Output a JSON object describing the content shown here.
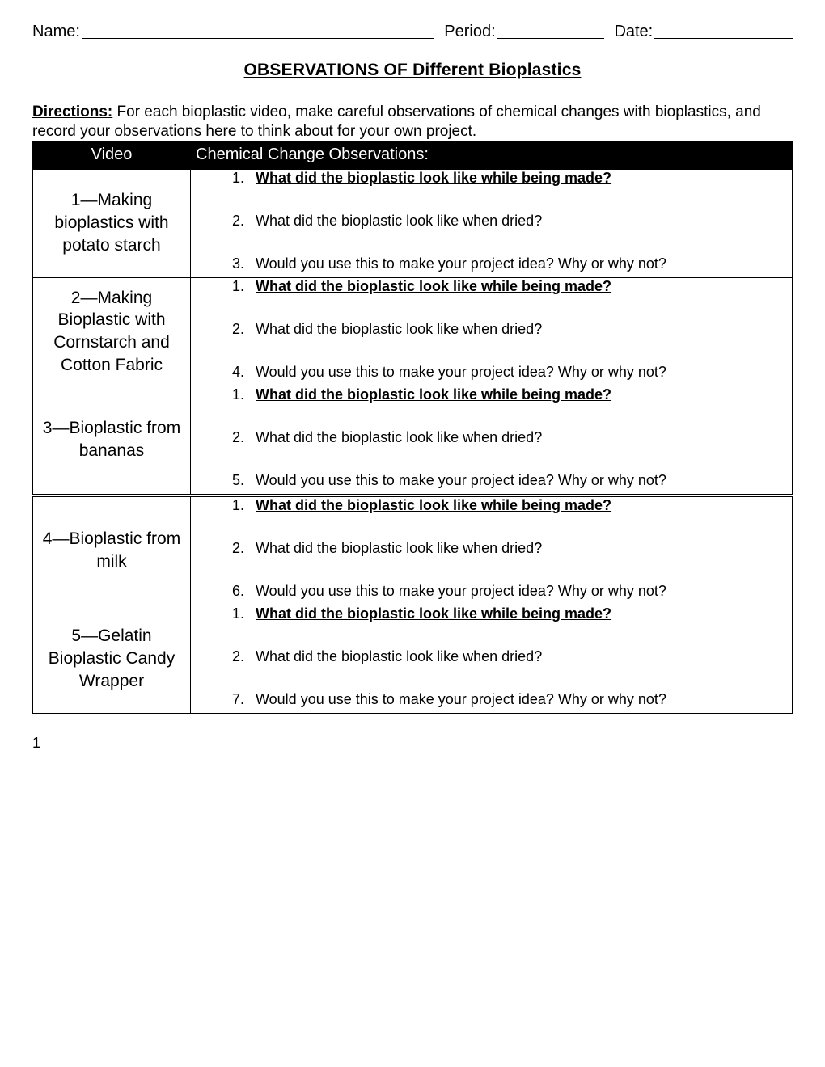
{
  "header": {
    "name_label": "Name:",
    "period_label": "Period:",
    "date_label": "Date:"
  },
  "title": "OBSERVATIONS OF Different Bioplastics",
  "directions": {
    "label": "Directions:",
    "text": " For each bioplastic video, make careful observations of chemical changes with bioplastics, and record your observations here to think about for your own project."
  },
  "table": {
    "col_video": "Video",
    "col_obs": "Chemical Change Observations:",
    "rows": [
      {
        "video": "1—Making bioplastics with potato starch",
        "q1_num": "1.",
        "q1": "What did the bioplastic look like while being made?",
        "q2_num": "2.",
        "q2": "What did the bioplastic look like when dried?",
        "q3_num": "3.",
        "q3": "Would you use this to make your project idea? Why or why not?",
        "sep": false
      },
      {
        "video": "2—Making Bioplastic with Cornstarch and Cotton Fabric",
        "q1_num": "1.",
        "q1": "What did the bioplastic look like while being made?",
        "q2_num": "2.",
        "q2": "What did the bioplastic look like when dried?",
        "q3_num": "4.",
        "q3": "Would you use this to make your project idea? Why or why not?",
        "sep": false
      },
      {
        "video": "3—Bioplastic from bananas",
        "q1_num": "1.",
        "q1": "What did the bioplastic look like while being made?",
        "q2_num": "2.",
        "q2": "What did the bioplastic look like when dried?",
        "q3_num": "5.",
        "q3": "Would you use this to make your project idea? Why or why not?",
        "sep": false
      },
      {
        "video": "4—Bioplastic from milk",
        "q1_num": "1.",
        "q1": "What did the bioplastic look like while being made?",
        "q2_num": "2.",
        "q2": "What did the bioplastic look like when dried?",
        "q3_num": "6.",
        "q3": "Would you use this to make your project idea? Why or why not?",
        "sep": true
      },
      {
        "video": "5—Gelatin Bioplastic Candy Wrapper",
        "q1_num": "1.",
        "q1": "What did the bioplastic look like while being made?",
        "q2_num": "2.",
        "q2": "What did the bioplastic look like when dried?",
        "q3_num": "7.",
        "q3": "Would you use this to make your project idea? Why or why not?",
        "sep": false
      }
    ]
  },
  "page_number": "1"
}
